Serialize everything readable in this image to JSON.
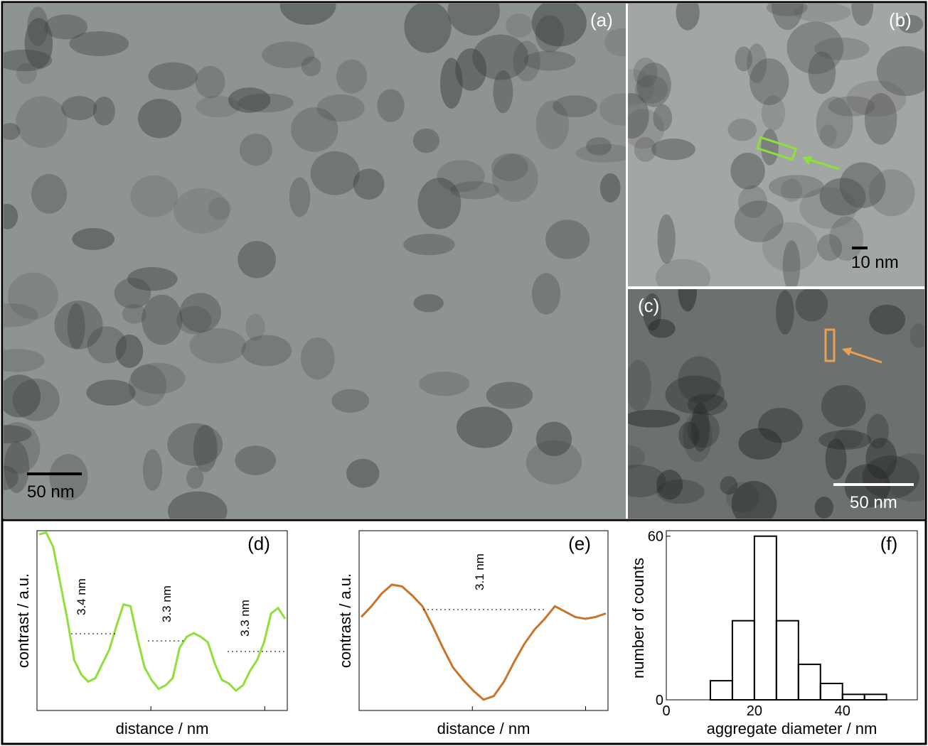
{
  "images": [
    {
      "label": "(a)",
      "scale_bar": "50 nm"
    },
    {
      "label": "(b)",
      "scale_bar": "10 nm"
    },
    {
      "label": "(c)",
      "scale_bar": "50 nm"
    }
  ],
  "chart_data": [
    {
      "type": "line",
      "label": "(d)",
      "x_label": "distance / nm",
      "y_label": "contrast / a.u.",
      "color": "#8fe03a",
      "values": [
        98,
        99,
        91,
        71,
        51,
        28,
        20,
        16,
        18,
        26,
        34,
        47,
        59,
        58,
        40,
        24,
        17,
        12,
        14,
        18,
        35,
        41,
        43,
        41,
        38,
        26,
        17,
        15,
        11,
        14,
        22,
        28,
        38,
        54,
        57,
        51
      ],
      "ylim": [
        0,
        100
      ],
      "annotations": [
        "3.4 nm",
        "3.3 nm",
        "3.3 nm"
      ]
    },
    {
      "type": "line",
      "label": "(e)",
      "x_label": "distance / nm",
      "y_label": "contrast / a.u.",
      "color": "#c8742a",
      "values": [
        52,
        58,
        65,
        70,
        69,
        64,
        58,
        47,
        35,
        24,
        17,
        11,
        6,
        8,
        16,
        27,
        37,
        45,
        51,
        58,
        55,
        52,
        51,
        52,
        54
      ],
      "ylim": [
        0,
        100
      ],
      "annotations": [
        "3.1 nm"
      ]
    },
    {
      "type": "histogram",
      "label": "(f)",
      "x_label": "aggregate diameter / nm",
      "y_label": "number of counts",
      "bins": [
        10,
        15,
        20,
        25,
        30,
        35,
        40,
        45,
        50
      ],
      "values": [
        7,
        29,
        60,
        29,
        13,
        6,
        2,
        2
      ],
      "xlim": [
        0,
        57
      ],
      "xticks": [
        0,
        20,
        40
      ],
      "ylim": [
        0,
        62
      ],
      "yticks": [
        0,
        60
      ]
    }
  ]
}
